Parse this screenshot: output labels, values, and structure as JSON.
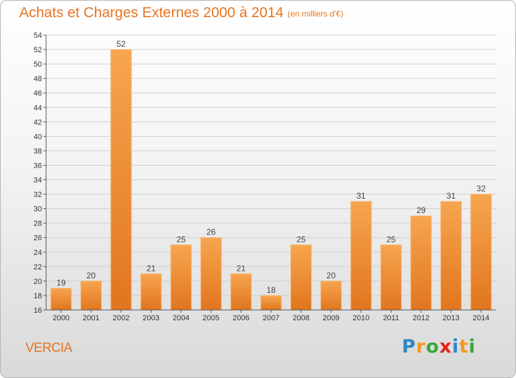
{
  "header": {
    "title": "Achats et Charges Externes 2000 à 2014",
    "unit": "(en milliers d'€)"
  },
  "footer": {
    "commune": "VERCIA",
    "logo_letters": [
      "P",
      "r",
      "o",
      "x",
      "i",
      "t",
      "i"
    ],
    "logo_colors": [
      "#2e86c8",
      "#f29a1e",
      "#3aa53b",
      "#e2231a",
      "#2e86c8",
      "#f29a1e",
      "#3aa53b"
    ]
  },
  "colors": {
    "bar_top": "#f7a54f",
    "bar_bottom": "#e0761e",
    "bar_edge": "#f5b978",
    "grid": "#cfcfcf",
    "axis": "#555555"
  },
  "chart_data": {
    "type": "bar",
    "title": "Achats et Charges Externes 2000 à 2014",
    "subtitle": "(en milliers d'€)",
    "xlabel": "",
    "ylabel": "",
    "categories": [
      "2000",
      "2001",
      "2002",
      "2003",
      "2004",
      "2005",
      "2006",
      "2007",
      "2008",
      "2009",
      "2010",
      "2011",
      "2012",
      "2013",
      "2014"
    ],
    "values": [
      19,
      20,
      52,
      21,
      25,
      26,
      21,
      18,
      25,
      20,
      31,
      25,
      29,
      31,
      32
    ],
    "ylim": [
      16,
      54
    ],
    "ytick_step": 2,
    "grid": true,
    "legend": "none"
  }
}
